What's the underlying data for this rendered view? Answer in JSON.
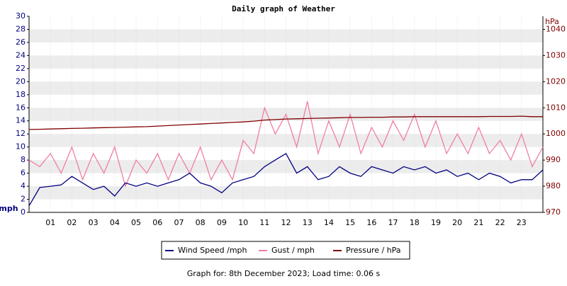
{
  "chart_data": {
    "type": "line",
    "title": "Daily graph of Weather",
    "y_label": "mph",
    "y2_label": "hPa",
    "x": [
      0,
      0.5,
      1,
      1.5,
      2,
      2.5,
      3,
      3.5,
      4,
      4.5,
      5,
      5.5,
      6,
      6.5,
      7,
      7.5,
      8,
      8.5,
      9,
      9.5,
      10,
      10.5,
      11,
      11.5,
      12,
      12.5,
      13,
      13.5,
      14,
      14.5,
      15,
      15.5,
      16,
      16.5,
      17,
      17.5,
      18,
      18.5,
      19,
      19.5,
      20,
      20.5,
      21,
      21.5,
      22,
      22.5,
      23,
      23.5,
      24
    ],
    "series": [
      {
        "name": "Wind Speed /mph",
        "color": "#000080",
        "values": [
          1,
          3.8,
          4,
          4.2,
          5.5,
          4.5,
          3.5,
          4,
          2.5,
          4.5,
          4,
          4.5,
          4,
          4.5,
          5,
          6,
          4.5,
          4,
          3,
          4.5,
          5,
          5.5,
          7,
          8,
          9,
          6,
          7,
          5,
          5.5,
          7,
          6,
          5.5,
          7,
          6.5,
          6,
          7,
          6.5,
          7,
          6,
          6.5,
          5.5,
          6,
          5,
          6,
          5.5,
          4.5,
          5,
          5,
          6.5
        ]
      },
      {
        "name": "Gust / mph",
        "color": "#f07fa0",
        "values": [
          8,
          7,
          9,
          6,
          10,
          5,
          9,
          6,
          10,
          4,
          8,
          6,
          9,
          5,
          9,
          6,
          10,
          5,
          8,
          5,
          11,
          9,
          16,
          12,
          15,
          10,
          17,
          9,
          14,
          10,
          15,
          9,
          13,
          10,
          14,
          11,
          15,
          10,
          14,
          9,
          12,
          9,
          13,
          9,
          11,
          8,
          12,
          7,
          10
        ]
      },
      {
        "name": "Pressure / hPa",
        "color": "#800000",
        "axis": "y2",
        "values": [
          1001.7,
          1001.8,
          1001.9,
          1002.0,
          1002.1,
          1002.2,
          1002.3,
          1002.4,
          1002.5,
          1002.6,
          1002.7,
          1002.8,
          1003.0,
          1003.2,
          1003.4,
          1003.6,
          1003.8,
          1004.0,
          1004.2,
          1004.4,
          1004.6,
          1004.9,
          1005.3,
          1005.5,
          1005.7,
          1005.8,
          1005.9,
          1006.0,
          1006.1,
          1006.2,
          1006.3,
          1006.3,
          1006.4,
          1006.4,
          1006.5,
          1006.5,
          1006.6,
          1006.6,
          1006.6,
          1006.6,
          1006.6,
          1006.6,
          1006.6,
          1006.7,
          1006.7,
          1006.7,
          1006.8,
          1006.6,
          1006.6
        ]
      }
    ],
    "xlim": [
      0,
      24
    ],
    "xticks": [
      {
        "value": 1,
        "label": "01"
      },
      {
        "value": 2,
        "label": "02"
      },
      {
        "value": 3,
        "label": "03"
      },
      {
        "value": 4,
        "label": "04"
      },
      {
        "value": 5,
        "label": "05"
      },
      {
        "value": 6,
        "label": "06"
      },
      {
        "value": 7,
        "label": "07"
      },
      {
        "value": 8,
        "label": "08"
      },
      {
        "value": 9,
        "label": "09"
      },
      10,
      11,
      12,
      13,
      14,
      15,
      16,
      17,
      18,
      19,
      20,
      21,
      22,
      23
    ],
    "ylim": [
      0,
      30
    ],
    "yticks": [
      0,
      2,
      4,
      6,
      8,
      10,
      12,
      14,
      16,
      18,
      20,
      22,
      24,
      26,
      28,
      30
    ],
    "y2lim": [
      970,
      1045
    ],
    "y2ticks": [
      970,
      980,
      990,
      1000,
      1010,
      1020,
      1030,
      1040
    ],
    "grid": true,
    "footer": "Graph for: 8th December 2023; Load time: 0.06 s"
  }
}
